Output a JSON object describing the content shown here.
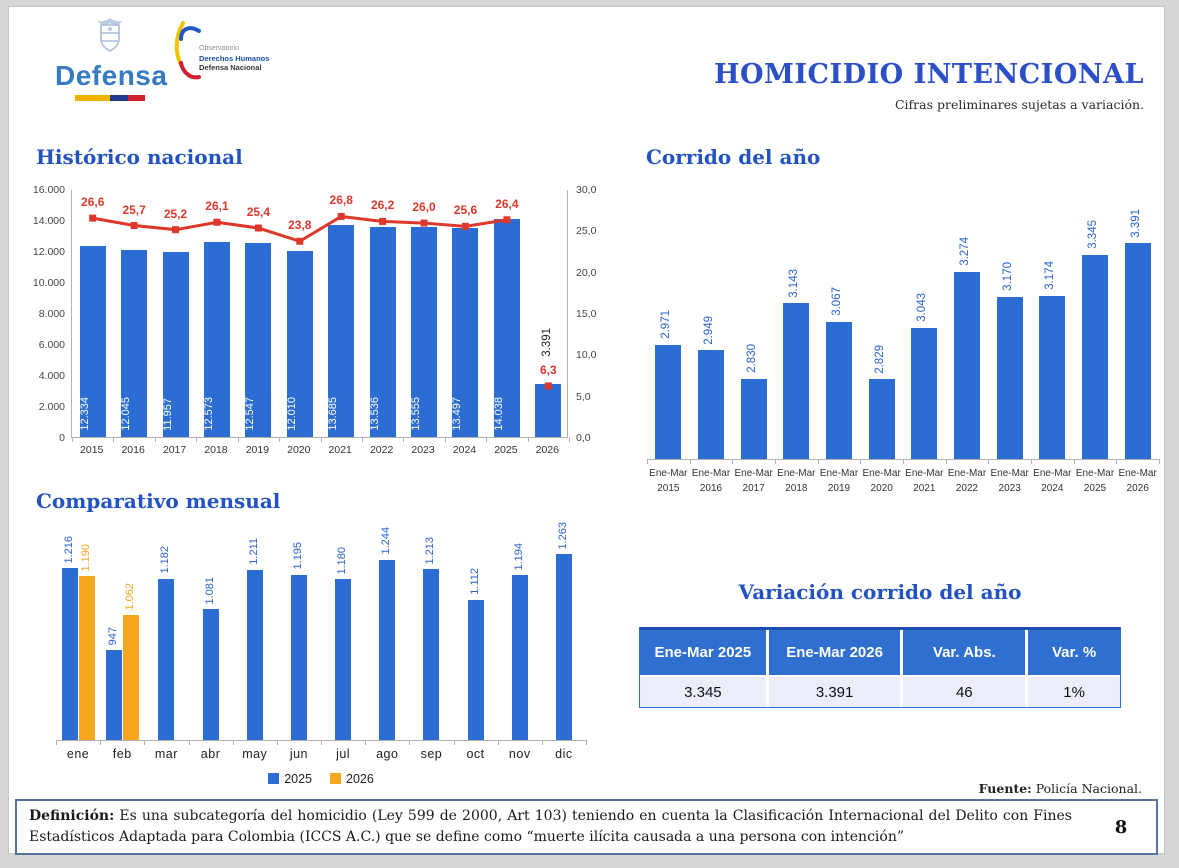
{
  "page": {
    "number": "8"
  },
  "header": {
    "title": "HOMICIDIO INTENCIONAL",
    "subtitle": "Cifras preliminares sujetas a variación.",
    "logo_defensa": {
      "text": "Defensa"
    },
    "logo_observatorio": {
      "line1": "Observatorio",
      "line2": "Derechos Humanos",
      "line3": "Defensa Nacional"
    }
  },
  "colors": {
    "bar_blue": "#2c6dd3",
    "bar_orange": "#f7a61d",
    "line_red": "#dd382b",
    "heading_blue": "#2353c0",
    "table_header_blue": "#2e6fd0",
    "label_blue": "#2a63cf"
  },
  "chart_data": [
    {
      "id": "historico",
      "type": "bar+line",
      "title": "Histórico nacional",
      "categories": [
        "2015",
        "2016",
        "2017",
        "2018",
        "2019",
        "2020",
        "2021",
        "2022",
        "2023",
        "2024",
        "2025",
        "2026"
      ],
      "series": [
        {
          "name": "Homicidios",
          "type": "bar",
          "axis": "left",
          "color": "#2c6dd3",
          "values": [
            12334,
            12045,
            11957,
            12573,
            12547,
            12010,
            13685,
            13536,
            13555,
            13497,
            14038,
            3391
          ],
          "labels": [
            "12.334",
            "12.045",
            "11.957",
            "12.573",
            "12.547",
            "12.010",
            "13.685",
            "13.536",
            "13.555",
            "13.497",
            "14.038",
            "3.391"
          ]
        },
        {
          "name": "Tasa",
          "type": "line",
          "axis": "right",
          "color": "#dd382b",
          "values": [
            26.6,
            25.7,
            25.2,
            26.1,
            25.4,
            23.8,
            26.8,
            26.2,
            26.0,
            25.6,
            26.4,
            6.3
          ],
          "labels": [
            "26,6",
            "25,7",
            "25,2",
            "26,1",
            "25,4",
            "23,8",
            "26,8",
            "26,2",
            "26,0",
            "25,6",
            "26,4",
            "6,3"
          ],
          "connected_points": 11
        }
      ],
      "left_axis": {
        "min": 0,
        "max": 16000,
        "step": 2000,
        "ticks": [
          "16.000",
          "14.000",
          "12.000",
          "10.000",
          "8.000",
          "6.000",
          "4.000",
          "2.000",
          "0"
        ]
      },
      "right_axis": {
        "min": 0,
        "max": 30,
        "step": 5,
        "ticks": [
          "30,0",
          "25,0",
          "20,0",
          "15,0",
          "10,0",
          "5,0",
          "0,0"
        ]
      },
      "grid": false
    },
    {
      "id": "corrido",
      "type": "bar",
      "title": "Corrido del año",
      "categories_line1": "Ene-Mar",
      "categories_line2": [
        "2015",
        "2016",
        "2017",
        "2018",
        "2019",
        "2020",
        "2021",
        "2022",
        "2023",
        "2024",
        "2025",
        "2026"
      ],
      "values": [
        2971,
        2949,
        2830,
        3143,
        3067,
        2829,
        3043,
        3274,
        3170,
        3174,
        3345,
        3391
      ],
      "labels": [
        "2.971",
        "2.949",
        "2.830",
        "3.143",
        "3.067",
        "2.829",
        "3.043",
        "3.274",
        "3.170",
        "3.174",
        "3.345",
        "3.391"
      ],
      "color": "#2c6dd3",
      "ylim": [
        2500,
        3500
      ],
      "grid": false
    },
    {
      "id": "mensual",
      "type": "grouped-bar",
      "title": "Comparativo mensual",
      "categories": [
        "ene",
        "feb",
        "mar",
        "abr",
        "may",
        "jun",
        "jul",
        "ago",
        "sep",
        "oct",
        "nov",
        "dic"
      ],
      "series": [
        {
          "name": "2025",
          "color": "#2c6dd3",
          "values": [
            1216,
            947,
            1182,
            1081,
            1211,
            1195,
            1180,
            1244,
            1213,
            1112,
            1194,
            1263
          ],
          "labels": [
            "1.216",
            "947",
            "1.182",
            "1.081",
            "1.211",
            "1.195",
            "1.180",
            "1.244",
            "1.213",
            "1.112",
            "1.194",
            "1.263"
          ]
        },
        {
          "name": "2026",
          "color": "#f7a61d",
          "values": [
            1190,
            1062,
            null,
            null,
            null,
            null,
            null,
            null,
            null,
            null,
            null,
            null
          ],
          "labels": [
            "1.190",
            "1.062"
          ]
        }
      ],
      "ylim": [
        650,
        1300
      ],
      "legend": [
        "2025",
        "2026"
      ],
      "legend_position": "bottom",
      "grid": false
    },
    {
      "id": "variacion",
      "type": "table",
      "title": "Variación corrido del año",
      "headers": [
        "Ene-Mar 2025",
        "Ene-Mar 2026",
        "Var. Abs.",
        "Var. %"
      ],
      "rows": [
        [
          "3.345",
          "3.391",
          "46",
          "1%"
        ]
      ]
    }
  ],
  "fuente": {
    "label": "Fuente:",
    "value": " Policía Nacional."
  },
  "definicion": {
    "label": "Definición:",
    "text": " Es una subcategoría del homicidio (Ley 599 de 2000, Art 103) teniendo en cuenta la Clasificación Internacional del Delito con Fines Estadísticos Adaptada para Colombia (ICCS A.C.) que se define como “muerte ilícita causada a una persona con intención”"
  }
}
